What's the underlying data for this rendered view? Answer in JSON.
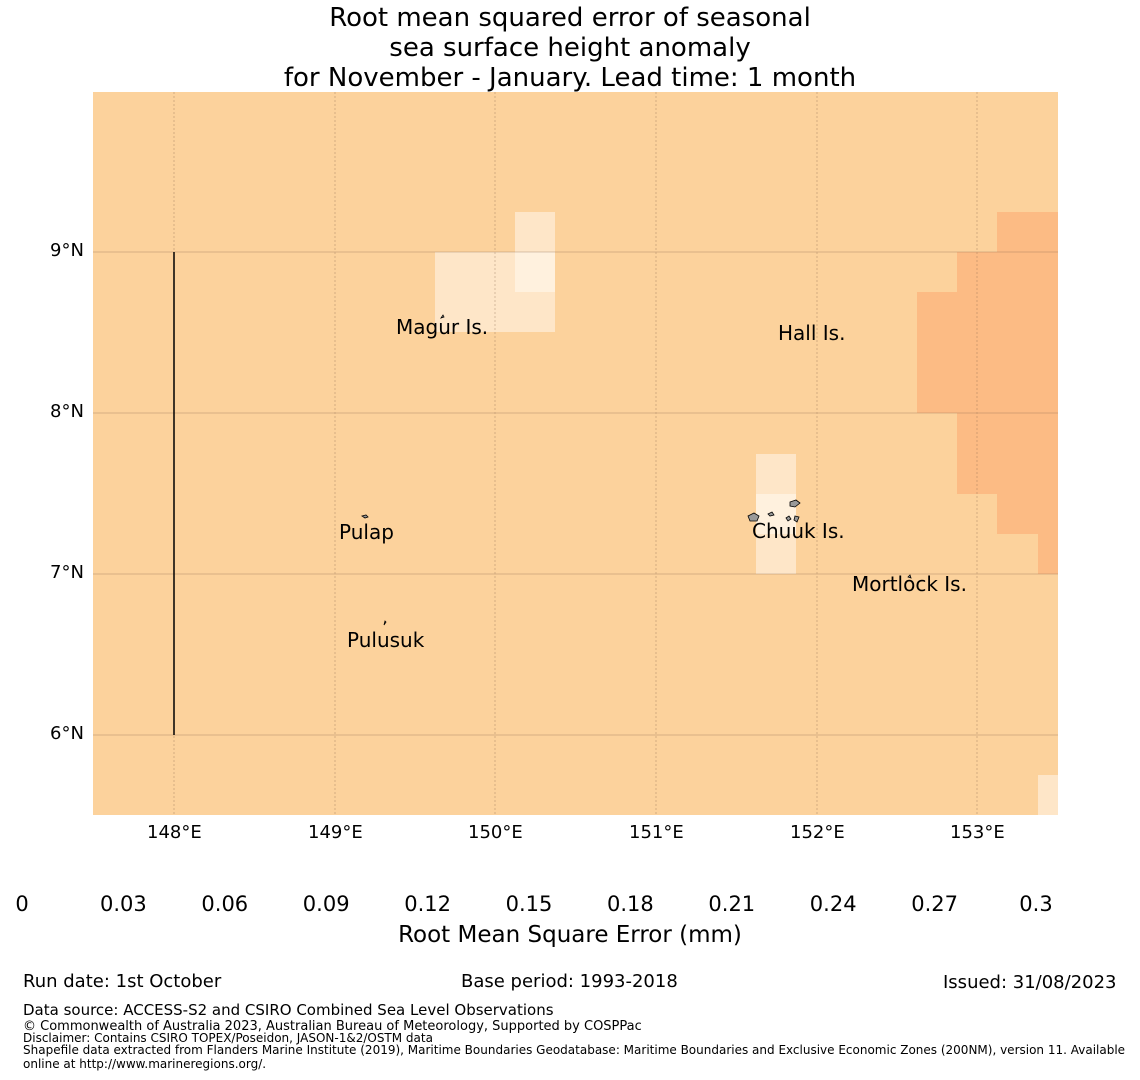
{
  "title": {
    "line1": "Root mean squared error of seasonal",
    "line2": "sea surface height anomaly",
    "line3": "for November - January. Lead time: 1 month"
  },
  "map": {
    "lat_ticks": [
      "9°N",
      "8°N",
      "7°N",
      "6°N"
    ],
    "lon_ticks": [
      "148°E",
      "149°E",
      "150°E",
      "151°E",
      "152°E",
      "153°E"
    ],
    "places": {
      "magur": "Magur Is.",
      "hall": "Hall Is.",
      "pulap": "Pulap",
      "chuuk": "Chuuk Is.",
      "mortlock": "Mortlock Is.",
      "pulusuk": "Pulusuk"
    },
    "colors": {
      "c0": "#fff5e6",
      "c1": "#fee6c8",
      "c2": "#fcd29c",
      "c3": "#fcbb84",
      "background": "#fcd29c"
    }
  },
  "colorbar": {
    "tick_labels": [
      "0",
      "0.03",
      "0.06",
      "0.09",
      "0.12",
      "0.15",
      "0.18",
      "0.21",
      "0.24",
      "0.27",
      "0.3"
    ],
    "colors": [
      "#fff5e6",
      "#fee6c8",
      "#fcd49c",
      "#fcbb84",
      "#fc8e58",
      "#fc6a4c",
      "#fa4d3c",
      "#d52a20",
      "#c90c14",
      "#b00008"
    ],
    "extend_color": "#7a0000",
    "label": "Root Mean Square Error (mm)"
  },
  "footer": {
    "run_date": "Run date: 1st October",
    "base_period": "Base period: 1993-2018",
    "issued": "Issued: 31/08/2023",
    "data_source": "Data source: ACCESS-S2 and CSIRO Combined Sea Level Observations",
    "copyright": "© Commonwealth of Australia 2023, Australian Bureau of Meteorology, Supported by COSPPac",
    "disclaimer": "Disclaimer: Contains CSIRO TOPEX/Poseidon, JASON-1&2/OSTM data",
    "shapefile_1": "Shapefile data extracted from Flanders Marine Institute (2019), Maritime Boundaries Geodatabase: Maritime Boundaries and Exclusive Economic Zones (200NM), version 11. Available",
    "shapefile_2": "online at http://www.marineregions.org/."
  }
}
